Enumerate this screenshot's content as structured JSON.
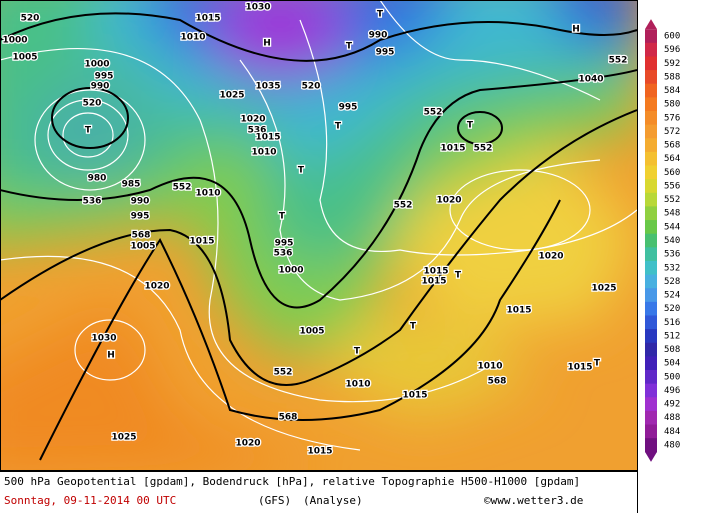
{
  "map_labels": [
    "520",
    "1000",
    "1005",
    "1000",
    "995",
    "990",
    "520",
    "T",
    "980",
    "536",
    "985",
    "990",
    "995",
    "568",
    "1005",
    "1015",
    "1030",
    "1010",
    "H",
    "T",
    "T",
    "990",
    "995",
    "1035",
    "520",
    "1025",
    "995",
    "1020",
    "536",
    "1015",
    "1010",
    "T",
    "552",
    "1010",
    "T",
    "552",
    "T",
    "552",
    "1015",
    "H",
    "552",
    "1040",
    "552",
    "1020",
    "T",
    "536",
    "995",
    "1000",
    "1015",
    "1020",
    "1015",
    "1015",
    "T",
    "1020",
    "1025",
    "1030",
    "H",
    "1005",
    "T",
    "T",
    "552",
    "1010",
    "1015",
    "1010",
    "568",
    "1015",
    "1015",
    "T",
    "568",
    "1020",
    "1015",
    "1025"
  ],
  "colorbar": {
    "labels": [
      600,
      596,
      592,
      588,
      584,
      580,
      576,
      572,
      568,
      564,
      560,
      556,
      552,
      548,
      544,
      540,
      536,
      532,
      528,
      524,
      520,
      516,
      512,
      508,
      504,
      500,
      496,
      492,
      488,
      484,
      480
    ],
    "colors": [
      "#b0205a",
      "#d02848",
      "#e03030",
      "#e84a28",
      "#f06420",
      "#f47a20",
      "#f48c28",
      "#f49c30",
      "#f4ac30",
      "#f4c030",
      "#f0d030",
      "#d8d830",
      "#b8d838",
      "#90d040",
      "#68c848",
      "#48c070",
      "#40c0a0",
      "#40c0c8",
      "#48b0e0",
      "#4898e8",
      "#3878e8",
      "#3058d8",
      "#2838c0",
      "#3028a8",
      "#4020b8",
      "#6028c8",
      "#8030d8",
      "#a030d0",
      "#a028b0",
      "#901c98",
      "#701080"
    ]
  },
  "footer": {
    "line1": "500 hPa Geopotential [gpdam], Bodendruck [hPa], relative Topographie H500-H1000 [gpdam]",
    "date": "Sonntag, 09-11-2014  00 UTC",
    "model": "(GFS)",
    "run": "(Analyse)",
    "credit": "©www.wetter3.de"
  }
}
